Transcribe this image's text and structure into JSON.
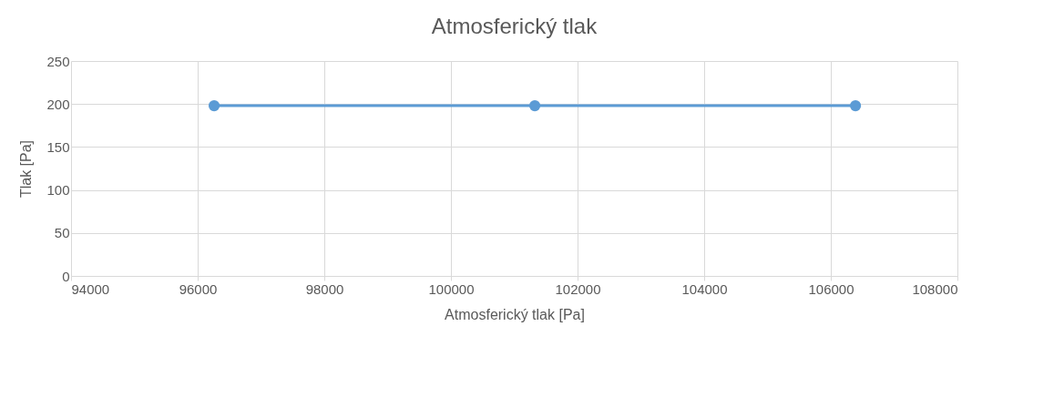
{
  "chart_data": {
    "type": "line",
    "title": "Atmosferický tlak",
    "xlabel": "Atmosferický tlak [Pa]",
    "ylabel": "Tlak [Pa]",
    "x": [
      96260,
      101325,
      106390
    ],
    "series": [
      {
        "color": "#5b9bd5",
        "values": [
          198,
          198,
          198
        ]
      }
    ],
    "xlim": [
      94000,
      108000
    ],
    "xticks": [
      94000,
      96000,
      98000,
      100000,
      102000,
      104000,
      106000,
      108000
    ],
    "ylim": [
      0,
      250
    ],
    "yticks": [
      0,
      50,
      100,
      150,
      200,
      250
    ],
    "grid": true,
    "marker": "circle",
    "line_style": "solid"
  }
}
